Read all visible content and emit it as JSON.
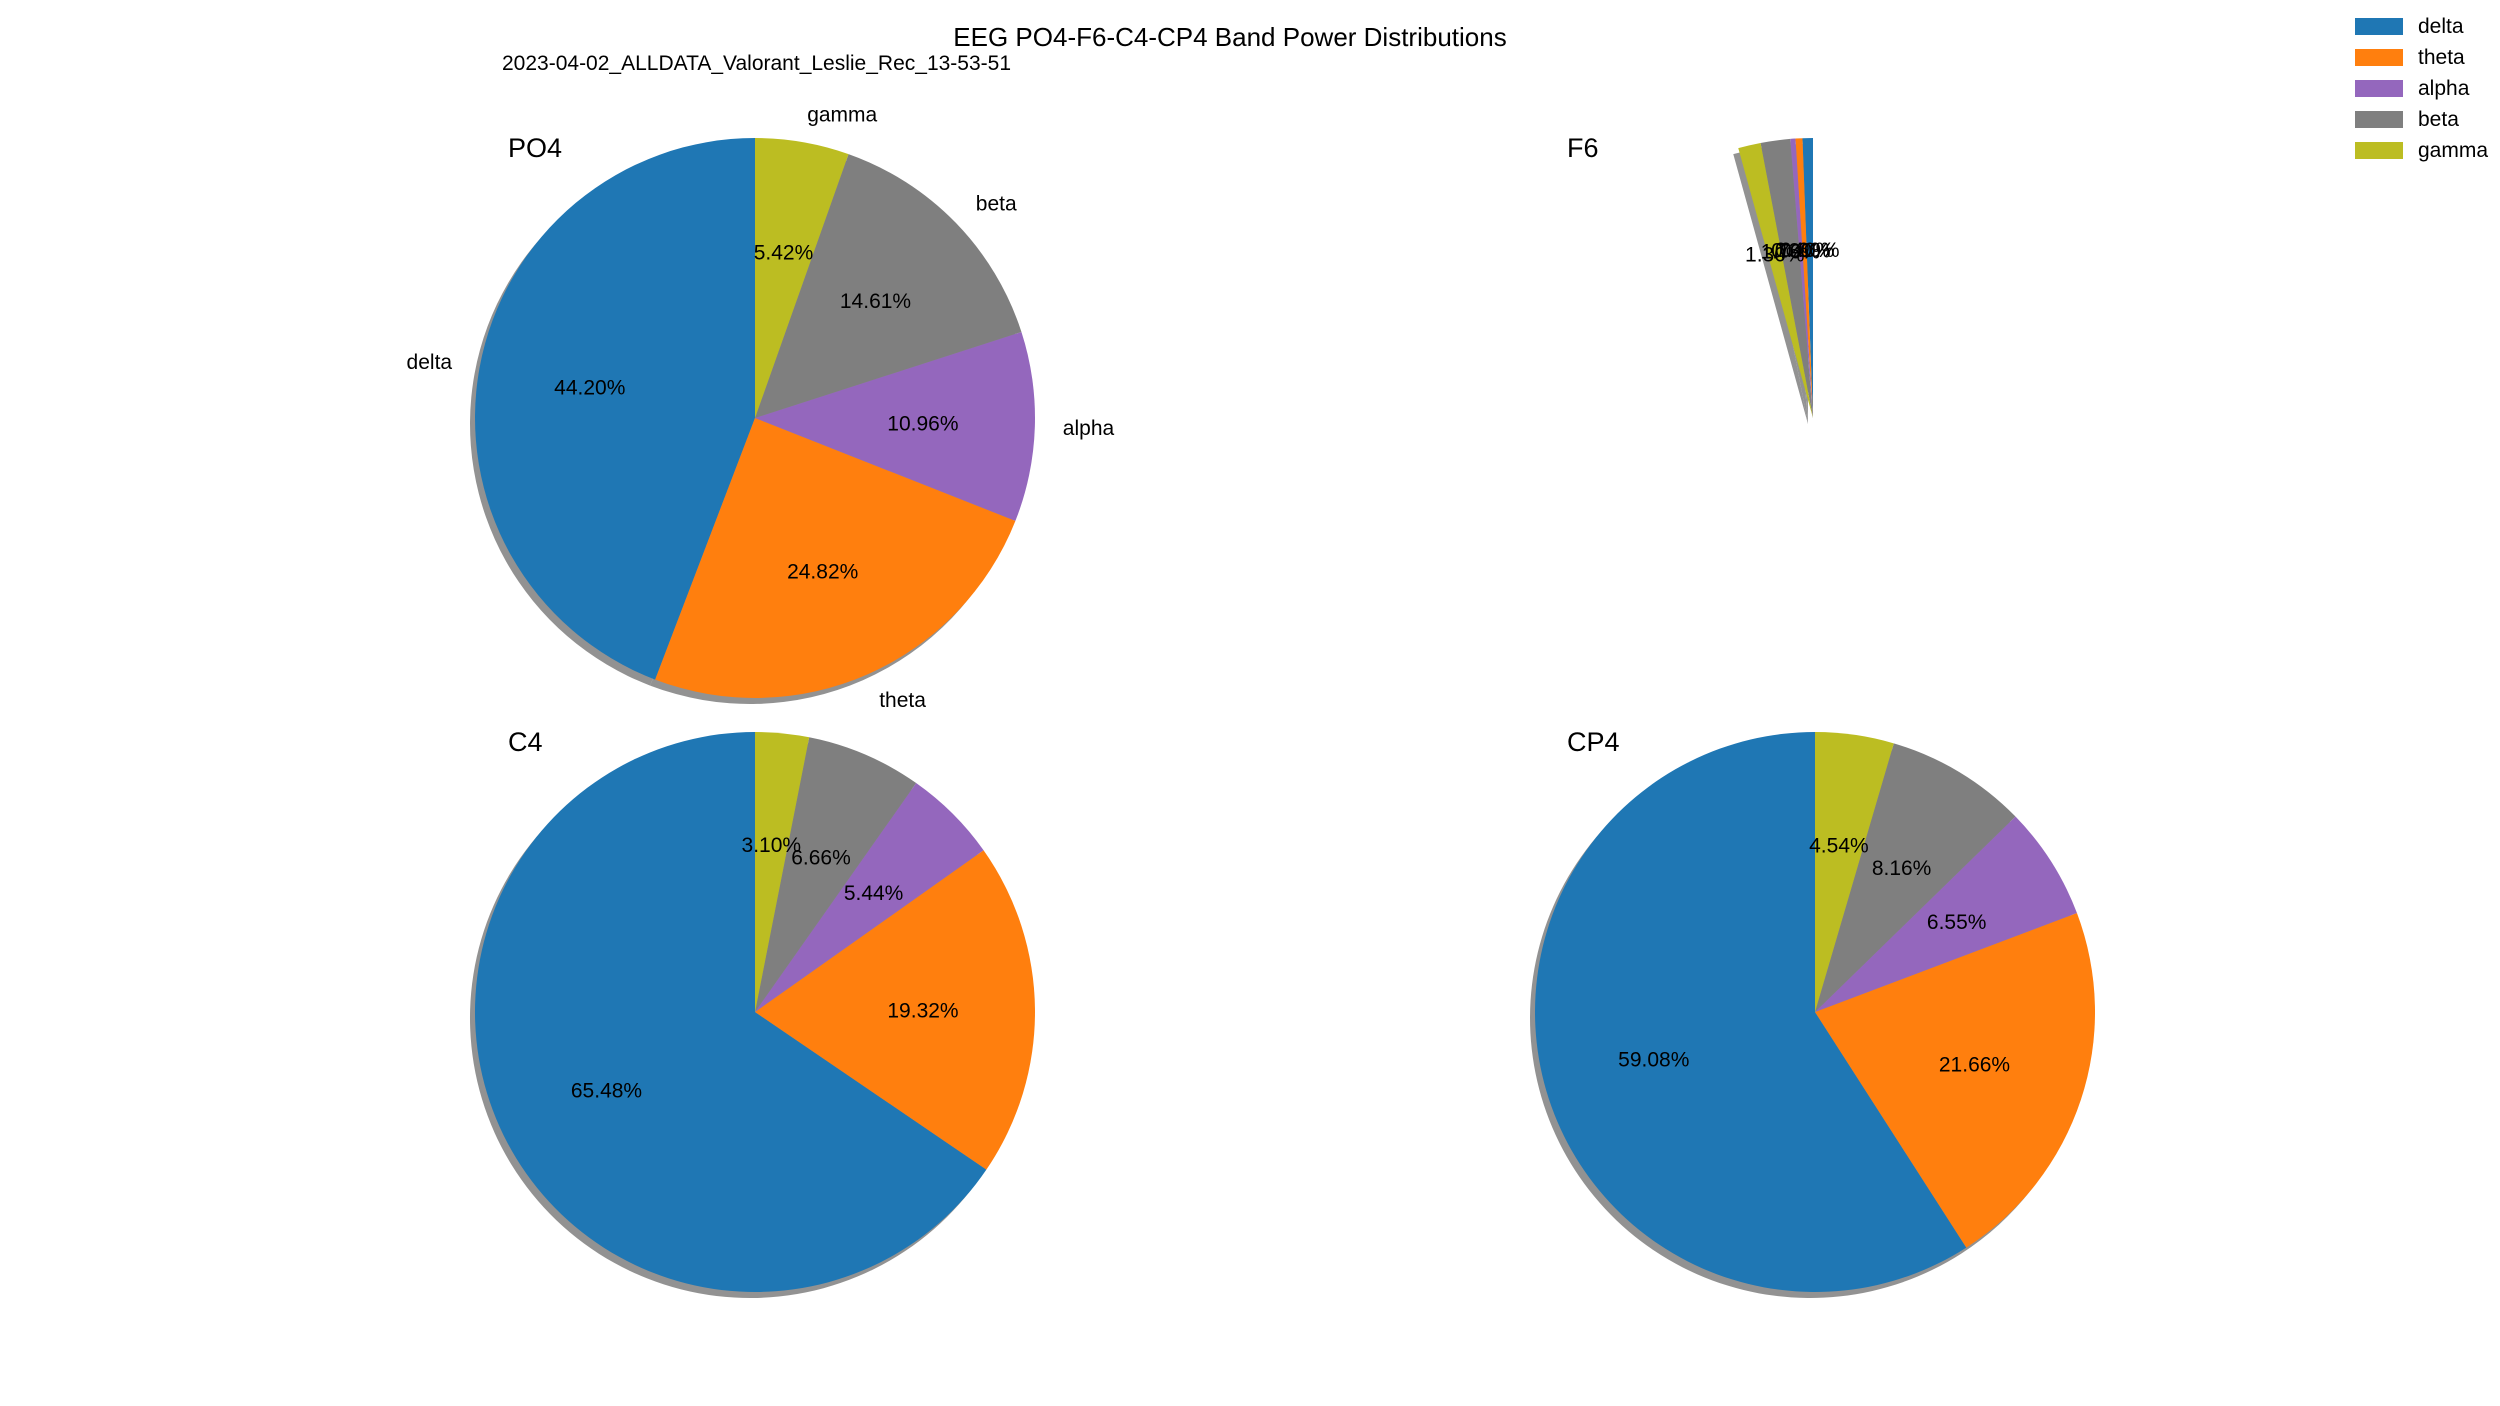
{
  "title": "EEG PO4-F6-C4-CP4 Band Power Distributions",
  "subtitle": "2023-04-02_ALLDATA_Valorant_Leslie_Rec_13-53-51",
  "legend": {
    "placement": "top-right",
    "entries": [
      {
        "label": "delta",
        "color": "#1f77b4"
      },
      {
        "label": "theta",
        "color": "#ff7f0e"
      },
      {
        "label": "alpha",
        "color": "#9467bd"
      },
      {
        "label": "beta",
        "color": "#7f7f7f"
      },
      {
        "label": "gamma",
        "color": "#bcbd22"
      }
    ]
  },
  "chart_data": [
    {
      "type": "pie",
      "title": "PO4",
      "labels": [
        "delta",
        "theta",
        "alpha",
        "beta",
        "gamma"
      ],
      "values": [
        44.2,
        24.82,
        10.96,
        14.61,
        5.42
      ],
      "pct_labels": [
        "44.20%",
        "24.82%",
        "10.96%",
        "14.61%",
        "5.42%"
      ],
      "show_slice_labels": true,
      "shadow": true,
      "colors": [
        "#1f77b4",
        "#ff7f0e",
        "#9467bd",
        "#7f7f7f",
        "#bcbd22"
      ]
    },
    {
      "type": "pie",
      "title": "F6",
      "labels": [
        "delta",
        "theta",
        "alpha",
        "beta",
        "gamma"
      ],
      "values": [
        0.6,
        0.4,
        0.3,
        1.7,
        1.3
      ],
      "pct_labels": [
        "0.60%",
        "0.40%",
        "0.30%",
        "1.70%",
        "1.30%"
      ],
      "partial": true,
      "show_slice_labels": false,
      "shadow": true,
      "colors": [
        "#1f77b4",
        "#ff7f0e",
        "#9467bd",
        "#7f7f7f",
        "#bcbd22"
      ]
    },
    {
      "type": "pie",
      "title": "C4",
      "labels": [
        "delta",
        "theta",
        "alpha",
        "beta",
        "gamma"
      ],
      "values": [
        65.48,
        19.32,
        5.44,
        6.66,
        3.1
      ],
      "pct_labels": [
        "65.48%",
        "19.32%",
        "5.44%",
        "6.66%",
        "3.10%"
      ],
      "show_slice_labels": false,
      "shadow": true,
      "colors": [
        "#1f77b4",
        "#ff7f0e",
        "#9467bd",
        "#7f7f7f",
        "#bcbd22"
      ]
    },
    {
      "type": "pie",
      "title": "CP4",
      "labels": [
        "delta",
        "theta",
        "alpha",
        "beta",
        "gamma"
      ],
      "values": [
        59.08,
        21.66,
        6.55,
        8.16,
        4.54
      ],
      "pct_labels": [
        "59.08%",
        "21.66%",
        "6.55%",
        "8.16%",
        "4.54%"
      ],
      "show_slice_labels": false,
      "shadow": true,
      "colors": [
        "#1f77b4",
        "#ff7f0e",
        "#9467bd",
        "#7f7f7f",
        "#bcbd22"
      ]
    }
  ]
}
